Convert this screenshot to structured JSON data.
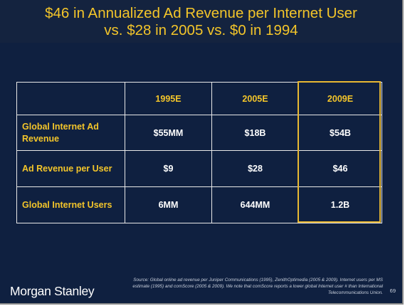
{
  "slide": {
    "title_line1": "$46 in Annualized Ad Revenue per Internet User",
    "title_line2": "vs. $28 in 2005 vs. $0 in 1994"
  },
  "table": {
    "columns": [
      "",
      "1995E",
      "2005E",
      "2009E"
    ],
    "rows": [
      {
        "label": "Global Internet Ad Revenue",
        "values": [
          "$55MM",
          "$18B",
          "$54B"
        ]
      },
      {
        "label": "Ad Revenue per User",
        "values": [
          "$9",
          "$28",
          "$46"
        ]
      },
      {
        "label": "Global Internet Users",
        "values": [
          "6MM",
          "644MM",
          "1.2B"
        ]
      }
    ]
  },
  "footer": {
    "source": "Source: Global online ad revenue per Juniper Communications (1995), ZenithOptimedia (2005 & 2009). Internet users per MS estimate (1995) and comScore (2005 & 2009). We note that comScore reports a lower global Internet user # than International Telecommunications Union.",
    "page_number": "69",
    "logo_text": "Morgan Stanley"
  },
  "colors": {
    "background": "#0f2040",
    "title": "#f3c52a",
    "highlight_border": "#e8b832"
  }
}
